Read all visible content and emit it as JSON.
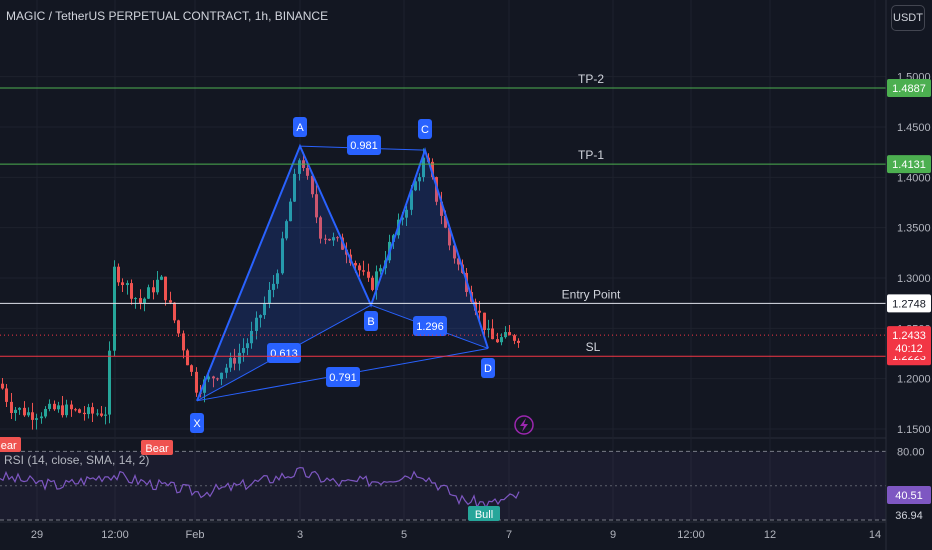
{
  "header": {
    "symbol_title": "MAGIC / TetherUS PERPETUAL CONTRACT, 1h, BINANCE",
    "currency_button": "USDT"
  },
  "colors": {
    "background": "#131722",
    "grid": "#1e222d",
    "bull": "#26a69a",
    "bear": "#ef5350",
    "pattern": "#2962ff",
    "pattern_fill": "rgba(41,98,255,0.18)",
    "tp_line": "#4caf50",
    "sl_line": "#f23645",
    "entry_line": "#e0e3eb",
    "rsi": "#7e57c2",
    "point_label": "#2962ff"
  },
  "chart_data": {
    "type": "candlestick",
    "price_axis": {
      "ticks": [
        "1.5000",
        "1.4500",
        "1.4000",
        "1.3500",
        "1.3000",
        "1.2500",
        "1.2000",
        "1.1500"
      ],
      "tick_values": [
        1.5,
        1.45,
        1.4,
        1.35,
        1.3,
        1.25,
        1.2,
        1.15
      ],
      "ylim": [
        1.14,
        1.52
      ]
    },
    "time_axis": {
      "ticks": [
        "29",
        "12:00",
        "Feb",
        "3",
        "5",
        "7",
        "9",
        "12:00",
        "12",
        "14"
      ]
    },
    "price_levels": [
      {
        "name": "TP-2",
        "label": "TP-2",
        "value": 1.4887,
        "badge": "1.4887",
        "color": "#4caf50"
      },
      {
        "name": "TP-1",
        "label": "TP-1",
        "value": 1.4131,
        "badge": "1.4131",
        "color": "#4caf50"
      },
      {
        "name": "Entry",
        "label": "Entry Point",
        "value": 1.2748,
        "badge": "1.2748",
        "color": "#e0e3eb"
      },
      {
        "name": "SL",
        "label": "SL",
        "value": 1.2223,
        "badge": "1.2223",
        "color": "#f23645"
      }
    ],
    "last_price": {
      "value": 1.2433,
      "badge": "1.2433",
      "countdown": "40:12"
    },
    "harmonic_pattern": {
      "points": [
        {
          "label": "X",
          "value": 1.178
        },
        {
          "label": "A",
          "value": 1.431
        },
        {
          "label": "B",
          "value": 1.273
        },
        {
          "label": "C",
          "value": 1.427
        },
        {
          "label": "D",
          "value": 1.23
        }
      ],
      "ratios": [
        {
          "label": "0.981",
          "between": "A-C"
        },
        {
          "label": "0.613",
          "between": "X-B"
        },
        {
          "label": "1.296",
          "between": "B-D"
        },
        {
          "label": "0.791",
          "between": "X-D"
        }
      ]
    },
    "rsi": {
      "label": "RSI (14, close, SMA, 14, 2)",
      "upper": 80,
      "lower": 20,
      "upper_label": "80.00",
      "current_label": "40.51",
      "low_label": "36.94"
    },
    "signals": [
      {
        "text": "Bear"
      },
      {
        "text": "Bear"
      },
      {
        "text": "Bull"
      }
    ]
  }
}
